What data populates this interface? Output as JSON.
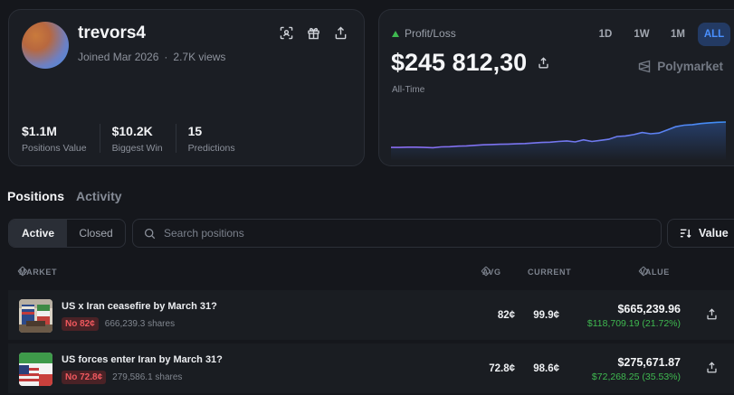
{
  "profile": {
    "username": "trevors4",
    "joined": "Joined Mar 2026",
    "views": "2.7K views",
    "stats": [
      {
        "value": "$1.1M",
        "label": "Positions Value"
      },
      {
        "value": "$10.2K",
        "label": "Biggest Win"
      },
      {
        "value": "15",
        "label": "Predictions"
      }
    ]
  },
  "pnl": {
    "label": "Profit/Loss",
    "value": "$245 812,30",
    "period_label": "All-Time",
    "ranges": [
      "1D",
      "1W",
      "1M",
      "ALL"
    ],
    "active_range": "ALL",
    "brand": "Polymarket",
    "accent": "#4a90ff",
    "line_color": "#8a6bf0"
  },
  "chart_data": {
    "type": "line",
    "title": "Profit/Loss (All-Time)",
    "xlabel": "",
    "ylabel": "",
    "x": [
      0,
      1,
      2,
      3,
      4,
      5,
      6,
      7,
      8,
      9,
      10,
      11,
      12,
      13,
      14,
      15,
      16,
      17,
      18,
      19,
      20,
      21,
      22,
      23,
      24,
      25,
      26,
      27,
      28,
      29,
      30,
      31,
      32,
      33,
      34,
      35,
      36,
      37,
      38,
      39,
      40
    ],
    "values": [
      3,
      3,
      4,
      4,
      3,
      2,
      5,
      6,
      8,
      9,
      11,
      13,
      14,
      15,
      16,
      17,
      18,
      20,
      22,
      23,
      26,
      28,
      24,
      32,
      26,
      30,
      34,
      45,
      47,
      52,
      60,
      55,
      58,
      70,
      82,
      88,
      90,
      94,
      97,
      99,
      100
    ],
    "ylim": [
      0,
      100
    ],
    "grid": false
  },
  "tabs": {
    "positions": "Positions",
    "activity": "Activity",
    "active": "Positions"
  },
  "filter": {
    "active": "Active",
    "closed": "Closed"
  },
  "search": {
    "placeholder": "Search positions"
  },
  "sort": {
    "label": "Value"
  },
  "table": {
    "headers": {
      "market": "MARKET",
      "avg": "AVG",
      "current": "CURRENT",
      "value": "VALUE"
    },
    "rows": [
      {
        "title": "US x Iran ceasefire by March 31?",
        "badge": "No 82¢",
        "shares": "666,239.3 shares",
        "avg": "82¢",
        "current": "99.9¢",
        "value": "$665,239.96",
        "gain": "$118,709.19 (21.72%)"
      },
      {
        "title": "US forces enter Iran by March 31?",
        "badge": "No 72.8¢",
        "shares": "279,586.1 shares",
        "avg": "72.8¢",
        "current": "98.6¢",
        "value": "$275,671.87",
        "gain": "$72,268.25 (35.53%)"
      }
    ]
  }
}
